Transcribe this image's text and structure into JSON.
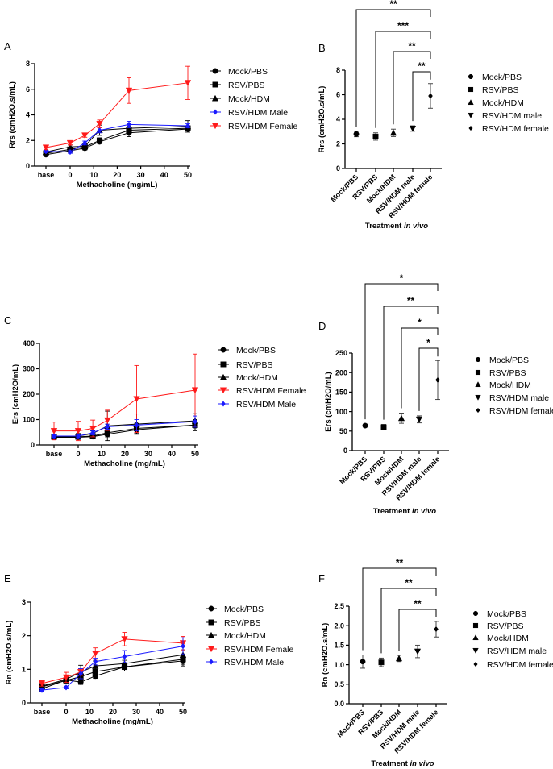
{
  "chart_data": [
    {
      "panel": "A",
      "type": "line",
      "xlabel": "Methacholine (mg/mL)",
      "ylabel": "Rrs (cmH2O.s/mL)",
      "x": [
        "base",
        0,
        6.25,
        12.5,
        25,
        50
      ],
      "xticks": [
        "base",
        "0",
        "10",
        "20",
        "30",
        "40",
        "50"
      ],
      "yticks": [
        "0",
        "2",
        "4",
        "6",
        "8"
      ],
      "ylim": [
        0,
        8
      ],
      "legend_position": "right",
      "series": [
        {
          "name": "Mock/PBS",
          "color": "#000000",
          "marker": "circle",
          "values": [
            0.9,
            1.2,
            1.4,
            1.9,
            2.6,
            2.9
          ],
          "err": [
            0.12,
            0.12,
            0.15,
            0.15,
            0.3,
            0.15
          ]
        },
        {
          "name": "RSV/PBS",
          "color": "#000000",
          "marker": "square",
          "values": [
            1.0,
            1.3,
            1.5,
            2.0,
            2.8,
            2.95
          ],
          "err": [
            0.12,
            0.15,
            0.15,
            0.2,
            0.3,
            0.2
          ]
        },
        {
          "name": "Mock/HDM",
          "color": "#000000",
          "marker": "triangle",
          "values": [
            1.1,
            1.5,
            1.55,
            2.8,
            2.95,
            3.1
          ],
          "err": [
            0.12,
            0.15,
            0.2,
            0.4,
            0.3,
            0.45
          ]
        },
        {
          "name": "RSV/HDM Male",
          "color": "#1a1aff",
          "marker": "diamond",
          "values": [
            1.15,
            1.1,
            1.8,
            2.8,
            3.25,
            3.15
          ],
          "err": [
            0.1,
            0.1,
            0.15,
            0.2,
            0.25,
            0.15
          ]
        },
        {
          "name": "RSV/HDM Female",
          "color": "#ff1a1a",
          "marker": "triangle-down",
          "values": [
            1.45,
            1.8,
            2.4,
            3.3,
            5.9,
            6.5
          ],
          "err": [
            0.15,
            0.15,
            0.15,
            0.3,
            1.0,
            1.3
          ]
        }
      ]
    },
    {
      "panel": "B",
      "type": "scatter",
      "xlabel": "Treatment",
      "xlabel_italic": "in vivo",
      "ylabel": "Rrs (cmH2O.s/mL)",
      "categories": [
        "Mock/PBS",
        "RSV/PBS",
        "Mock/HDM",
        "RSV/HDM male",
        "RSV/HDM female"
      ],
      "markers": [
        "circle",
        "square",
        "triangle",
        "triangle-down",
        "diamond"
      ],
      "values": [
        2.8,
        2.6,
        2.9,
        3.25,
        5.9
      ],
      "err": [
        0.22,
        0.3,
        0.3,
        0.22,
        1.0
      ],
      "yticks": [
        "0",
        "2",
        "4",
        "6",
        "8"
      ],
      "ylim": [
        0,
        8
      ],
      "legend_position": "right",
      "comparisons": [
        {
          "from": "Mock/PBS",
          "to": "RSV/HDM female",
          "label": "**"
        },
        {
          "from": "RSV/PBS",
          "to": "RSV/HDM female",
          "label": "***"
        },
        {
          "from": "Mock/HDM",
          "to": "RSV/HDM female",
          "label": "**"
        },
        {
          "from": "RSV/HDM male",
          "to": "RSV/HDM female",
          "label": "**"
        }
      ]
    },
    {
      "panel": "C",
      "type": "line",
      "xlabel": "Methacholine (mg/mL)",
      "ylabel": "Ers (cmH2O/mL)",
      "x": [
        "base",
        0,
        6.25,
        12.5,
        25,
        50
      ],
      "xticks": [
        "base",
        "0",
        "10",
        "20",
        "30",
        "40",
        "50"
      ],
      "yticks": [
        "0",
        "100",
        "200",
        "300",
        "400"
      ],
      "ylim": [
        0,
        400
      ],
      "legend_position": "right",
      "series": [
        {
          "name": "Mock/PBS",
          "color": "#000000",
          "marker": "circle",
          "values": [
            30,
            30,
            33,
            42,
            60,
            78
          ],
          "err": [
            8,
            8,
            8,
            10,
            15,
            20
          ]
        },
        {
          "name": "RSV/PBS",
          "color": "#000000",
          "marker": "square",
          "values": [
            32,
            32,
            35,
            48,
            65,
            78
          ],
          "err": [
            8,
            8,
            8,
            12,
            20,
            22
          ]
        },
        {
          "name": "Mock/HDM",
          "color": "#000000",
          "marker": "triangle",
          "values": [
            35,
            35,
            45,
            75,
            82,
            95
          ],
          "err": [
            8,
            10,
            10,
            58,
            40,
            28
          ]
        },
        {
          "name": "RSV/HDM Female",
          "color": "#ff1a1a",
          "marker": "triangle-down",
          "values": [
            55,
            55,
            65,
            97,
            181,
            216
          ],
          "err": [
            35,
            38,
            33,
            40,
            132,
            142
          ]
        },
        {
          "name": "RSV/HDM Male",
          "color": "#1a1aff",
          "marker": "diamond",
          "values": [
            35,
            35,
            48,
            72,
            78,
            92
          ],
          "err": [
            6,
            6,
            8,
            10,
            22,
            22
          ]
        }
      ]
    },
    {
      "panel": "D",
      "type": "scatter",
      "xlabel": "Treatment",
      "xlabel_italic": "in vivo",
      "ylabel": "Ers (cmH2O/mL)",
      "categories": [
        "Mock/PBS",
        "RSV/PBS",
        "Mock/HDM",
        "RSV/HDM male",
        "RSV/HDM female"
      ],
      "markers": [
        "circle",
        "square",
        "triangle",
        "triangle-down",
        "diamond"
      ],
      "values": [
        64,
        60,
        83,
        80,
        181
      ],
      "err": [
        4,
        7,
        13,
        9,
        50
      ],
      "yticks": [
        "0",
        "50",
        "100",
        "150",
        "200",
        "250"
      ],
      "ylim": [
        0,
        250
      ],
      "legend_position": "right",
      "comparisons": [
        {
          "from": "Mock/PBS",
          "to": "RSV/HDM female",
          "label": "*"
        },
        {
          "from": "RSV/PBS",
          "to": "RSV/HDM female",
          "label": "**"
        },
        {
          "from": "Mock/HDM",
          "to": "RSV/HDM female",
          "label": "*"
        },
        {
          "from": "RSV/HDM male",
          "to": "RSV/HDM female",
          "label": "*"
        }
      ]
    },
    {
      "panel": "E",
      "type": "line",
      "xlabel": "Methacholine (mg/mL)",
      "ylabel": "Rn (cmH2O.s/mL)",
      "x": [
        "base",
        0,
        6.25,
        12.5,
        25,
        50
      ],
      "xticks": [
        "base",
        "0",
        "10",
        "20",
        "30",
        "40",
        "50"
      ],
      "yticks": [
        "0",
        "1",
        "2",
        "3"
      ],
      "ylim": [
        0,
        3
      ],
      "legend_position": "right",
      "series": [
        {
          "name": "Mock/PBS",
          "color": "#000000",
          "marker": "circle",
          "values": [
            0.42,
            0.68,
            0.62,
            0.8,
            1.07,
            1.25
          ],
          "err": [
            0.06,
            0.08,
            0.07,
            0.07,
            0.12,
            0.15
          ]
        },
        {
          "name": "RSV/PBS",
          "color": "#000000",
          "marker": "square",
          "values": [
            0.48,
            0.67,
            0.78,
            0.93,
            1.07,
            1.3
          ],
          "err": [
            0.06,
            0.08,
            0.1,
            0.1,
            0.12,
            0.15
          ]
        },
        {
          "name": "Mock/HDM",
          "color": "#000000",
          "marker": "triangle",
          "values": [
            0.5,
            0.7,
            0.92,
            1.1,
            1.17,
            1.43
          ],
          "err": [
            0.08,
            0.08,
            0.2,
            0.15,
            0.1,
            0.15
          ]
        },
        {
          "name": "RSV/HDM Female",
          "color": "#ff1a1a",
          "marker": "triangle-down",
          "values": [
            0.58,
            0.76,
            0.92,
            1.47,
            1.9,
            1.78
          ],
          "err": [
            0.08,
            0.15,
            0.1,
            0.17,
            0.2,
            0.2
          ]
        },
        {
          "name": "RSV/HDM Male",
          "color": "#1a1aff",
          "marker": "diamond",
          "values": [
            0.38,
            0.46,
            0.87,
            1.23,
            1.38,
            1.69
          ],
          "err": [
            0.04,
            0.04,
            0.15,
            0.1,
            0.18,
            0.25
          ]
        }
      ]
    },
    {
      "panel": "F",
      "type": "scatter",
      "xlabel": "Treatment",
      "xlabel_italic": "in vivo",
      "ylabel": "Rn (cmH2O.s/mL)",
      "categories": [
        "Mock/PBS",
        "RSV/PBS",
        "Mock/HDM",
        "RSV/HDM male",
        "RSV/HDM female"
      ],
      "markers": [
        "circle",
        "square",
        "triangle",
        "triangle-down",
        "diamond"
      ],
      "values": [
        1.08,
        1.06,
        1.16,
        1.34,
        1.91
      ],
      "err": [
        0.17,
        0.11,
        0.08,
        0.16,
        0.2
      ],
      "yticks": [
        "0.0",
        "0.5",
        "1.0",
        "1.5",
        "2.0",
        "2.5"
      ],
      "ylim": [
        0,
        2.5
      ],
      "legend_position": "right",
      "comparisons": [
        {
          "from": "Mock/PBS",
          "to": "RSV/HDM female",
          "label": "**"
        },
        {
          "from": "RSV/PBS",
          "to": "RSV/HDM female",
          "label": "**"
        },
        {
          "from": "Mock/HDM",
          "to": "RSV/HDM female",
          "label": "**"
        }
      ]
    }
  ]
}
